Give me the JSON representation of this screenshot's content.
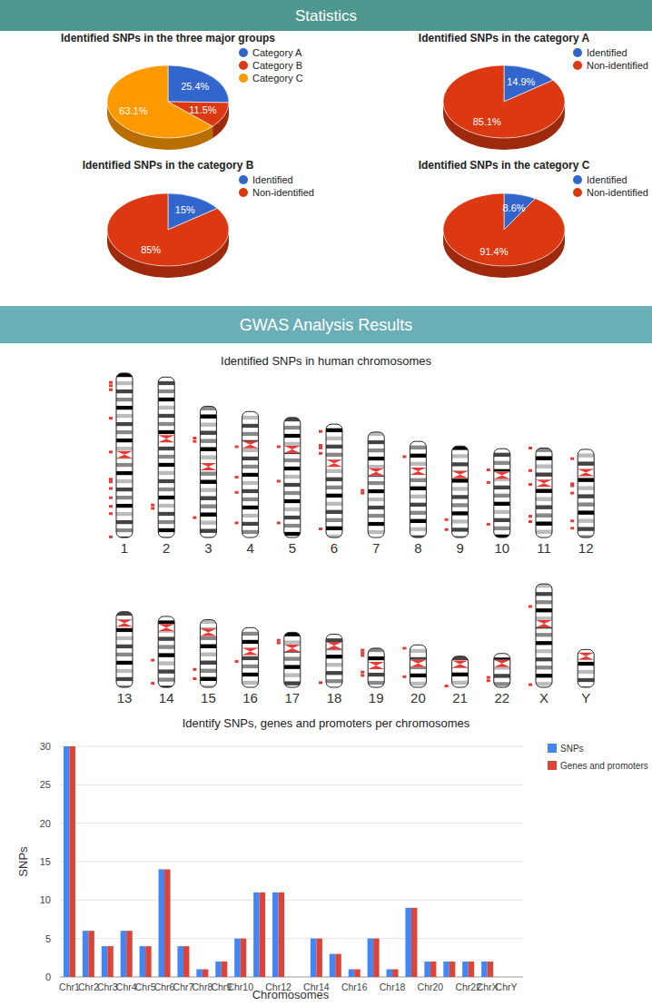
{
  "headers": [
    "Statistics",
    "GWAS Analysis Results"
  ],
  "chart_data": [
    {
      "type": "pie",
      "title": "Identified SNPs in the three major groups",
      "categories": [
        "Category A",
        "Category B",
        "Category C"
      ],
      "values": [
        25.4,
        11.5,
        63.1
      ],
      "value_labels": [
        "25.4%",
        "11.5%",
        "63.1%"
      ],
      "colors": [
        "#3366cc",
        "#dc3912",
        "#ff9900"
      ],
      "data_labels": true,
      "legend": "right"
    },
    {
      "type": "pie",
      "title": "Identified SNPs in the category A",
      "categories": [
        "Identified",
        "Non-identified"
      ],
      "values": [
        14.9,
        85.1
      ],
      "value_labels": [
        "14.9%",
        "85.1%"
      ],
      "colors": [
        "#3366cc",
        "#dc3912"
      ],
      "data_labels": true,
      "legend": "right"
    },
    {
      "type": "pie",
      "title": "Identified SNPs in the category B",
      "categories": [
        "Identified",
        "Non-identified"
      ],
      "values": [
        15,
        85
      ],
      "value_labels": [
        "15%",
        "85%"
      ],
      "colors": [
        "#3366cc",
        "#dc3912"
      ],
      "data_labels": true,
      "legend": "right"
    },
    {
      "type": "pie",
      "title": "Identified SNPs in the category C",
      "categories": [
        "Identified",
        "Non-identified"
      ],
      "values": [
        8.6,
        91.4
      ],
      "value_labels": [
        "8.6%",
        "91.4%"
      ],
      "colors": [
        "#3366cc",
        "#dc3912"
      ],
      "data_labels": true,
      "legend": "right"
    },
    {
      "type": "ideogram",
      "title": "Identified SNPs in human chromosomes",
      "color": "#e53935",
      "chromosomes": [
        {
          "label": "1",
          "length": 248,
          "centromere": 123,
          "snps": [
            14,
            19,
            25,
            68,
            119,
            160,
            164,
            174,
            188,
            201,
            212,
            247
          ]
        },
        {
          "label": "2",
          "length": 242,
          "centromere": 93,
          "snps": [
            193,
            198
          ]
        },
        {
          "label": "3",
          "length": 198,
          "centromere": 91,
          "snps": [
            48,
            53,
            168
          ]
        },
        {
          "label": "4",
          "length": 190,
          "centromere": 50,
          "snps": [
            53,
            99,
            122,
            168
          ]
        },
        {
          "label": "5",
          "length": 181,
          "centromere": 48,
          "snps": [
            44,
            96,
            159
          ]
        },
        {
          "label": "6",
          "length": 171,
          "centromere": 59,
          "snps": [
            11,
            32,
            36,
            44,
            158
          ]
        },
        {
          "label": "7",
          "length": 159,
          "centromere": 60,
          "snps": [
            88,
            92
          ]
        },
        {
          "label": "8",
          "length": 145,
          "centromere": 45,
          "snps": [
            23
          ]
        },
        {
          "label": "9",
          "length": 138,
          "centromere": 43,
          "snps": [
            111,
            126
          ]
        },
        {
          "label": "10",
          "length": 134,
          "centromere": 40,
          "snps": [
            32,
            51,
            114
          ]
        },
        {
          "label": "11",
          "length": 135,
          "centromere": 53,
          "snps": [
            0,
            34,
            55,
            103,
            111
          ]
        },
        {
          "label": "12",
          "length": 133,
          "centromere": 35,
          "snps": [
            14,
            52,
            55,
            66,
            108,
            119
          ]
        },
        {
          "label": "13",
          "length": 114,
          "centromere": 17,
          "snps": []
        },
        {
          "label": "14",
          "length": 107,
          "centromere": 17,
          "snps": [
            66,
            101
          ]
        },
        {
          "label": "15",
          "length": 102,
          "centromere": 19,
          "snps": [
            75,
            89
          ]
        },
        {
          "label": "16",
          "length": 90,
          "centromere": 36,
          "snps": [
            51
          ]
        },
        {
          "label": "17",
          "length": 83,
          "centromere": 24,
          "snps": [
            12,
            16
          ]
        },
        {
          "label": "18",
          "length": 80,
          "centromere": 17,
          "snps": [
            73
          ]
        },
        {
          "label": "19",
          "length": 59,
          "centromere": 26,
          "snps": [
            3,
            7,
            11,
            36,
            41
          ]
        },
        {
          "label": "20",
          "length": 64,
          "centromere": 28,
          "snps": [
            5,
            48
          ]
        },
        {
          "label": "21",
          "length": 47,
          "centromere": 12,
          "snps": [
            45
          ]
        },
        {
          "label": "22",
          "length": 51,
          "centromere": 15,
          "snps": [
            36,
            41
          ]
        },
        {
          "label": "X",
          "length": 156,
          "centromere": 60,
          "snps": [
            34,
            152
          ]
        },
        {
          "label": "Y",
          "length": 57,
          "centromere": 10,
          "snps": []
        }
      ]
    },
    {
      "type": "bar",
      "title": "Identify SNPs, genes and promoters per chromosomes",
      "x_label": "Chromosomes",
      "y_label": "SNPs",
      "categories": [
        "Chr1",
        "Chr2",
        "Chr3",
        "Chr4",
        "Chr5",
        "Chr6",
        "Chr7",
        "Chr8",
        "Chr9",
        "Chr10",
        null,
        "Chr12",
        null,
        "Chr14",
        null,
        "Chr16",
        null,
        "Chr18",
        null,
        "Chr20",
        null,
        "Chr22",
        "ChrX",
        "ChrY"
      ],
      "series": [
        {
          "name": "SNPs",
          "color": "#4285f4",
          "values": [
            30,
            6,
            4,
            6,
            4,
            14,
            4,
            1,
            2,
            5,
            11,
            11,
            0,
            5,
            3,
            1,
            5,
            1,
            9,
            2,
            2,
            2,
            2,
            0
          ]
        },
        {
          "name": "Genes and promoters",
          "color": "#db4437",
          "values": [
            30,
            6,
            4,
            6,
            4,
            14,
            4,
            1,
            2,
            5,
            11,
            11,
            0,
            5,
            3,
            1,
            5,
            1,
            9,
            2,
            2,
            2,
            2,
            0
          ]
        }
      ],
      "ylim": [
        0,
        30
      ],
      "yticks": [
        0,
        5,
        10,
        15,
        20,
        25,
        30
      ],
      "grid": true,
      "legend": "right"
    }
  ]
}
